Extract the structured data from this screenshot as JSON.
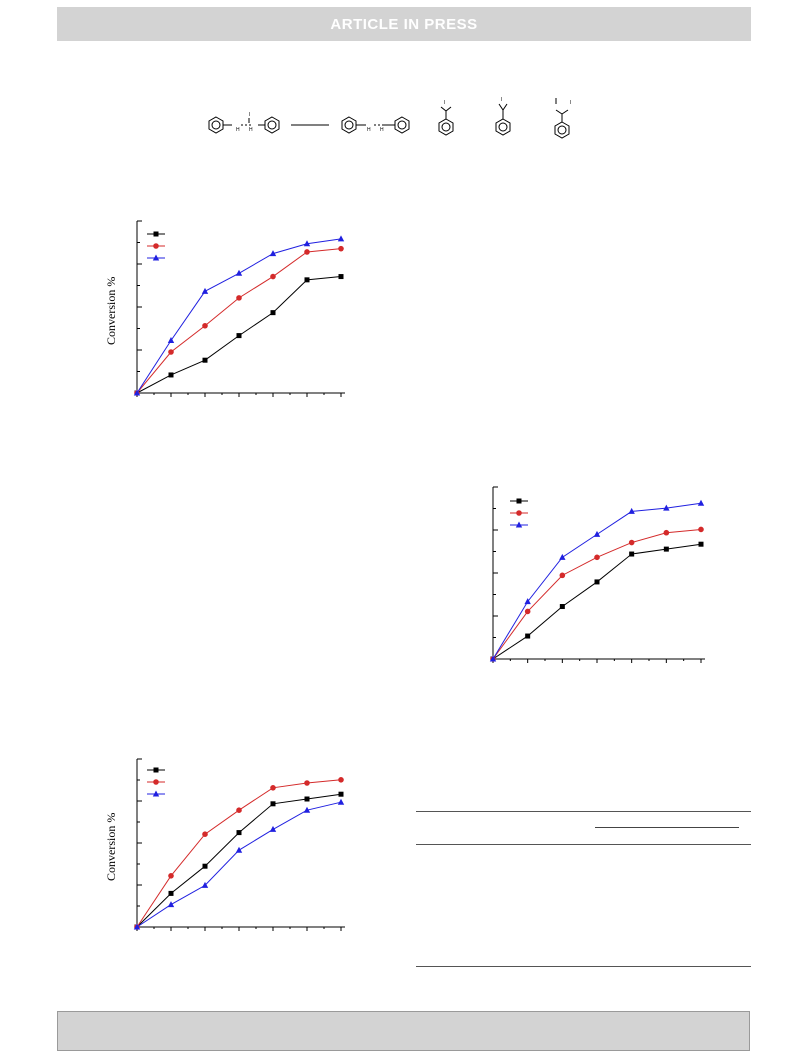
{
  "header": {
    "banner_text": "ARTICLE  IN  PRESS"
  },
  "scheme": {
    "atom_labels": [
      "H",
      "H",
      "H",
      "H",
      "I",
      "I",
      "I",
      "I"
    ]
  },
  "charts": {
    "colors": {
      "series1": "#000000",
      "series2": "#d42a2a",
      "series3": "#2020e0"
    },
    "chart1": {
      "ylabel": "Conversion %"
    },
    "chart3": {
      "ylabel": "Conversion %"
    }
  },
  "chart_data": [
    {
      "type": "line",
      "title": "",
      "ylabel": "Conversion %",
      "xlabel": "",
      "x": [
        0,
        1,
        2,
        3,
        4,
        5,
        6
      ],
      "ylim": [
        0,
        100
      ],
      "grid": false,
      "legend": "top-left",
      "series": [
        {
          "marker": "square",
          "color": "#000000",
          "values": [
            0,
            11,
            20,
            35,
            49,
            69,
            71
          ]
        },
        {
          "marker": "circle",
          "color": "#d42a2a",
          "values": [
            0,
            25,
            41,
            58,
            71,
            86,
            88
          ]
        },
        {
          "marker": "triangle",
          "color": "#2020e0",
          "values": [
            0,
            32,
            62,
            73,
            85,
            91,
            94
          ]
        }
      ]
    },
    {
      "type": "line",
      "title": "",
      "ylabel": "",
      "xlabel": "",
      "x": [
        0,
        1,
        2,
        3,
        4,
        5,
        6
      ],
      "ylim": [
        0,
        100
      ],
      "grid": false,
      "legend": "top-left",
      "series": [
        {
          "marker": "square",
          "color": "#000000",
          "values": [
            0,
            14,
            32,
            47,
            64,
            67,
            70
          ]
        },
        {
          "marker": "circle",
          "color": "#d42a2a",
          "values": [
            0,
            29,
            51,
            62,
            71,
            77,
            79
          ]
        },
        {
          "marker": "triangle",
          "color": "#2020e0",
          "values": [
            0,
            35,
            62,
            76,
            90,
            92,
            95
          ]
        }
      ]
    },
    {
      "type": "line",
      "title": "",
      "ylabel": "Conversion %",
      "xlabel": "",
      "x": [
        0,
        1,
        2,
        3,
        4,
        5,
        6
      ],
      "ylim": [
        0,
        100
      ],
      "grid": false,
      "legend": "top-left",
      "series": [
        {
          "marker": "square",
          "color": "#000000",
          "values": [
            0,
            21,
            38,
            59,
            77,
            80,
            83
          ]
        },
        {
          "marker": "circle",
          "color": "#d42a2a",
          "values": [
            0,
            32,
            58,
            73,
            87,
            90,
            92
          ]
        },
        {
          "marker": "triangle",
          "color": "#2020e0",
          "values": [
            0,
            14,
            26,
            48,
            61,
            73,
            78
          ]
        }
      ]
    }
  ]
}
